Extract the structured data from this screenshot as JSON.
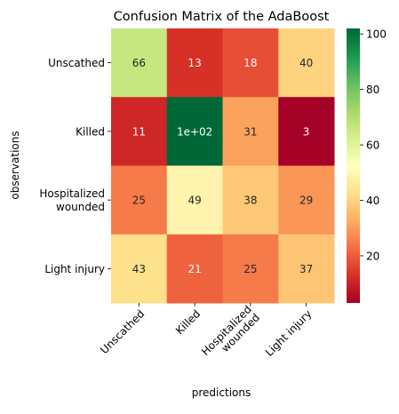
{
  "chart_data": {
    "type": "heatmap",
    "title": "Confusion Matrix of the AdaBoost",
    "xlabel": "predictions",
    "ylabel": "observations",
    "row_labels": [
      [
        "Unscathed"
      ],
      [
        "Killed"
      ],
      [
        "Hospitalized",
        "wounded"
      ],
      [
        "Light injury"
      ]
    ],
    "col_labels": [
      [
        "Unscathed"
      ],
      [
        "Killed"
      ],
      [
        "Hospitalized",
        "wounded"
      ],
      [
        "Light injury"
      ]
    ],
    "values": [
      [
        66,
        13,
        18,
        40
      ],
      [
        11,
        102,
        31,
        3
      ],
      [
        25,
        49,
        38,
        29
      ],
      [
        43,
        21,
        25,
        37
      ]
    ],
    "annotations": [
      [
        "66",
        "13",
        "18",
        "40"
      ],
      [
        "11",
        "1e+02",
        "31",
        "3"
      ],
      [
        "25",
        "49",
        "38",
        "29"
      ],
      [
        "43",
        "21",
        "25",
        "37"
      ]
    ],
    "colormap": "RdYlGn",
    "vmin": 3,
    "vmax": 102,
    "colorbar_ticks": [
      20,
      40,
      60,
      80,
      100
    ]
  }
}
